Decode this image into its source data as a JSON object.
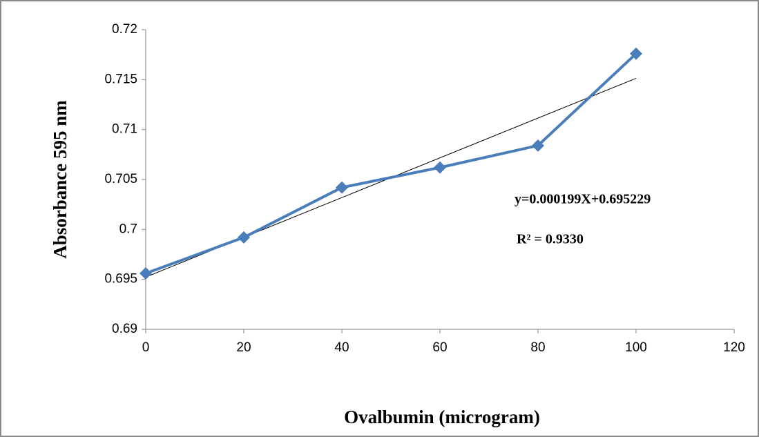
{
  "chart_data": {
    "type": "line",
    "x_label": "Ovalbumin (microgram)",
    "y_label": "Absorbance 595 nm",
    "x": [
      0,
      20,
      40,
      60,
      80,
      100
    ],
    "series": [
      {
        "color": "#4a7ebb",
        "values": [
          0.6956,
          0.6992,
          0.7042,
          0.7062,
          0.7084,
          0.7176
        ]
      }
    ],
    "trendline": {
      "color": "#000000",
      "x": [
        0,
        100
      ],
      "values": [
        0.695229,
        0.715129
      ]
    },
    "annotations": [
      "y=0.000199X+0.695229",
      "R² = 0.9330"
    ],
    "xlim": [
      0,
      120
    ],
    "xticks": [
      0,
      20,
      40,
      60,
      80,
      100,
      120
    ],
    "ylim": [
      0.69,
      0.72
    ],
    "yticks": [
      0.69,
      0.695,
      0.7,
      0.705,
      0.71,
      0.715,
      0.72
    ],
    "grid": false
  }
}
